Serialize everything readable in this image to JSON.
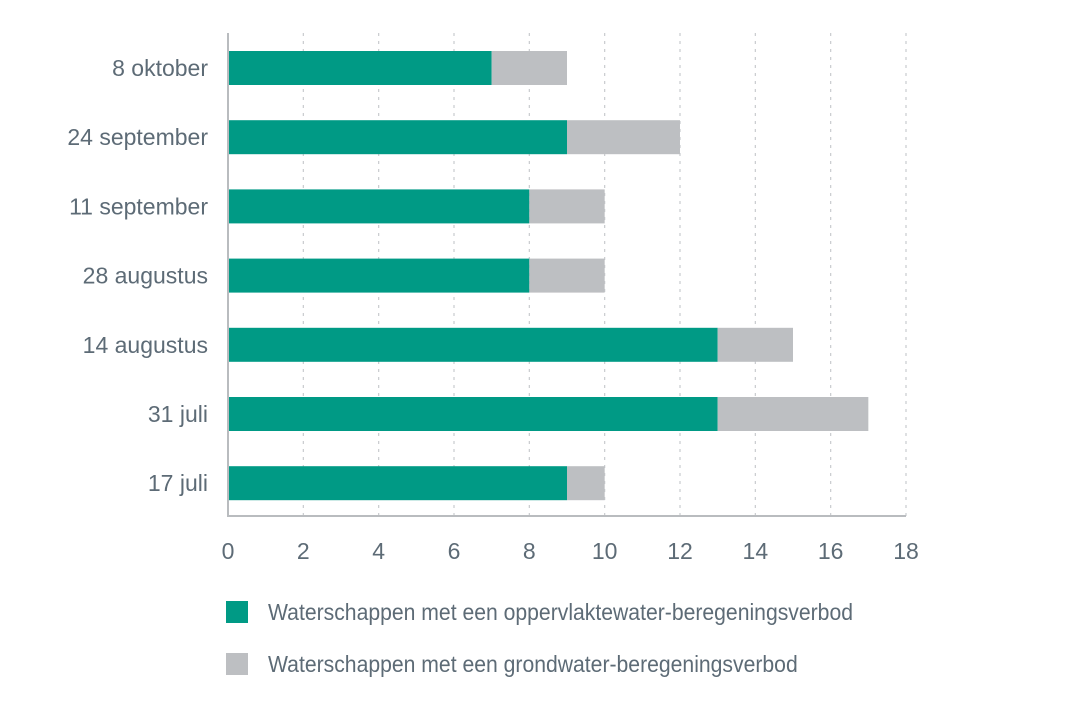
{
  "chart_data": {
    "type": "bar",
    "orientation": "horizontal",
    "stacked": true,
    "title": "",
    "xlabel": "",
    "ylabel": "",
    "categories": [
      "8 oktober",
      "24 september",
      "11 september",
      "28 augustus",
      "14 augustus",
      "31 juli",
      "17 juli"
    ],
    "series": [
      {
        "name": "Waterschappen met een oppervlaktewater-beregeningsverbod",
        "color": "#009a85",
        "values": [
          7,
          9,
          8,
          8,
          13,
          13,
          9
        ]
      },
      {
        "name": "Waterschappen met een grondwater-beregeningsverbod",
        "color": "#bdbfc2",
        "values": [
          2,
          3,
          2,
          2,
          2,
          4,
          1
        ]
      }
    ],
    "xlim": [
      0,
      18
    ],
    "xticks": [
      0,
      2,
      4,
      6,
      8,
      10,
      12,
      14,
      16,
      18
    ],
    "grid": true,
    "grid_style": "dotted vertical",
    "legend_position": "bottom"
  }
}
